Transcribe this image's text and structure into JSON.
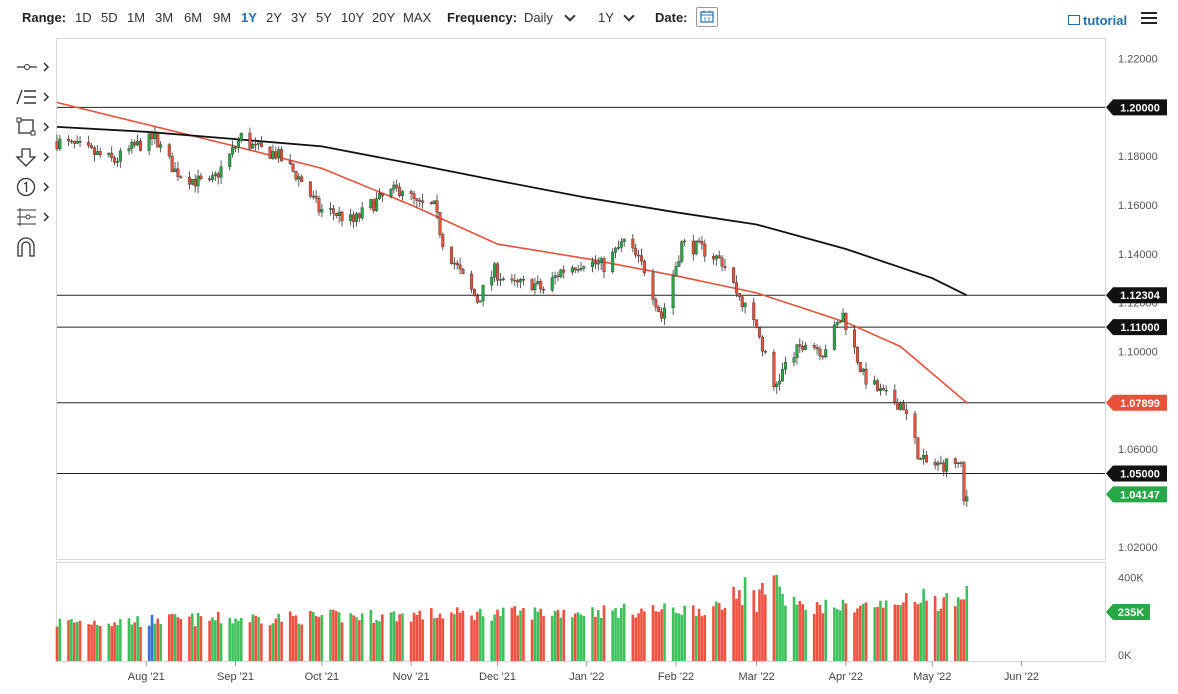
{
  "toolbar": {
    "range_label": "Range:",
    "ranges": [
      "1D",
      "5D",
      "1M",
      "3M",
      "6M",
      "9M",
      "1Y",
      "2Y",
      "3Y",
      "5Y",
      "10Y",
      "20Y",
      "MAX"
    ],
    "active_range": "1Y",
    "frequency_label": "Frequency:",
    "frequency_value": "Daily",
    "period_value": "1Y",
    "date_label": "Date:",
    "tutorial_label": "tutorial",
    "accent_color": "#1f6fb5"
  },
  "drawing_tools": [
    "line-tool-icon",
    "text-tool-icon",
    "shape-tool-icon",
    "arrow-tool-icon",
    "number-tool-icon",
    "fib-tool-icon",
    "magnet-icon"
  ],
  "chart_data": {
    "type": "candlestick",
    "instrument_hint": "EUR/USD",
    "frequency": "Daily",
    "y_axis": {
      "range": [
        1.015,
        1.228
      ],
      "ticks": [
        "1.22000",
        "1.20000",
        "1.18000",
        "1.16000",
        "1.14000",
        "1.12000",
        "1.10000",
        "1.08000",
        "1.06000",
        "1.04000",
        "1.02000"
      ]
    },
    "x_axis": {
      "range": [
        "2021-07-01",
        "2022-06-30"
      ],
      "ticks": [
        {
          "label": "Aug '21",
          "date": "2021-08-01"
        },
        {
          "label": "Sep '21",
          "date": "2021-09-01"
        },
        {
          "label": "Oct '21",
          "date": "2021-10-01"
        },
        {
          "label": "Nov '21",
          "date": "2021-11-01"
        },
        {
          "label": "Dec '21",
          "date": "2021-12-01"
        },
        {
          "label": "Jan '22",
          "date": "2022-01-01"
        },
        {
          "label": "Feb '22",
          "date": "2022-02-01"
        },
        {
          "label": "Mar '22",
          "date": "2022-03-01"
        },
        {
          "label": "Apr '22",
          "date": "2022-04-01"
        },
        {
          "label": "May '22",
          "date": "2022-05-01"
        },
        {
          "label": "Jun '22",
          "date": "2022-06-01"
        }
      ]
    },
    "price_path": [
      [
        "2021-07-01",
        1.186
      ],
      [
        "2021-07-07",
        1.184
      ],
      [
        "2021-07-14",
        1.181
      ],
      [
        "2021-07-21",
        1.178
      ],
      [
        "2021-07-28",
        1.184
      ],
      [
        "2021-08-04",
        1.187
      ],
      [
        "2021-08-11",
        1.174
      ],
      [
        "2021-08-18",
        1.17
      ],
      [
        "2021-08-23",
        1.168
      ],
      [
        "2021-08-30",
        1.18
      ],
      [
        "2021-09-03",
        1.188
      ],
      [
        "2021-09-08",
        1.183
      ],
      [
        "2021-09-15",
        1.181
      ],
      [
        "2021-09-20",
        1.175
      ],
      [
        "2021-09-24",
        1.17
      ],
      [
        "2021-09-30",
        1.158
      ],
      [
        "2021-10-05",
        1.157
      ],
      [
        "2021-10-12",
        1.153
      ],
      [
        "2021-10-18",
        1.16
      ],
      [
        "2021-10-25",
        1.165
      ],
      [
        "2021-10-29",
        1.167
      ],
      [
        "2021-11-03",
        1.16
      ],
      [
        "2021-11-09",
        1.159
      ],
      [
        "2021-11-12",
        1.145
      ],
      [
        "2021-11-19",
        1.13
      ],
      [
        "2021-11-24",
        1.121
      ],
      [
        "2021-11-30",
        1.133
      ],
      [
        "2021-12-06",
        1.127
      ],
      [
        "2021-12-13",
        1.128
      ],
      [
        "2021-12-17",
        1.125
      ],
      [
        "2021-12-23",
        1.133
      ],
      [
        "2021-12-31",
        1.137
      ],
      [
        "2022-01-07",
        1.135
      ],
      [
        "2022-01-14",
        1.145
      ],
      [
        "2022-01-21",
        1.134
      ],
      [
        "2022-01-27",
        1.114
      ],
      [
        "2022-02-03",
        1.144
      ],
      [
        "2022-02-10",
        1.142
      ],
      [
        "2022-02-17",
        1.137
      ],
      [
        "2022-02-24",
        1.12
      ],
      [
        "2022-03-01",
        1.11
      ],
      [
        "2022-03-07",
        1.085
      ],
      [
        "2022-03-11",
        1.094
      ],
      [
        "2022-03-18",
        1.105
      ],
      [
        "2022-03-24",
        1.1
      ],
      [
        "2022-03-31",
        1.115
      ],
      [
        "2022-04-07",
        1.09
      ],
      [
        "2022-04-14",
        1.082
      ],
      [
        "2022-04-21",
        1.078
      ],
      [
        "2022-04-27",
        1.055
      ],
      [
        "2022-05-03",
        1.053
      ],
      [
        "2022-05-09",
        1.055
      ],
      [
        "2022-05-11",
        1.052
      ],
      [
        "2022-05-12",
        1.038
      ],
      [
        "2022-05-13",
        1.041
      ]
    ],
    "moving_averages": [
      {
        "color": "#e8503a",
        "points": [
          [
            "2021-07-01",
            1.202
          ],
          [
            "2021-08-01",
            1.193
          ],
          [
            "2021-09-01",
            1.184
          ],
          [
            "2021-10-01",
            1.175
          ],
          [
            "2021-11-01",
            1.16
          ],
          [
            "2021-12-01",
            1.144
          ],
          [
            "2022-01-01",
            1.138
          ],
          [
            "2022-02-01",
            1.131
          ],
          [
            "2022-03-01",
            1.124
          ],
          [
            "2022-04-01",
            1.112
          ],
          [
            "2022-04-20",
            1.102
          ],
          [
            "2022-05-13",
            1.079
          ]
        ]
      },
      {
        "color": "#111111",
        "points": [
          [
            "2021-07-01",
            1.192
          ],
          [
            "2021-08-01",
            1.19
          ],
          [
            "2021-09-01",
            1.187
          ],
          [
            "2021-10-01",
            1.184
          ],
          [
            "2021-11-01",
            1.177
          ],
          [
            "2021-12-01",
            1.17
          ],
          [
            "2022-01-01",
            1.163
          ],
          [
            "2022-02-01",
            1.157
          ],
          [
            "2022-03-01",
            1.152
          ],
          [
            "2022-04-01",
            1.142
          ],
          [
            "2022-05-01",
            1.13
          ],
          [
            "2022-05-13",
            1.123
          ]
        ]
      }
    ],
    "horizontal_lines": [
      1.2,
      1.12304,
      1.11,
      1.07899,
      1.05
    ],
    "price_labels": [
      {
        "text": "1.20000",
        "value": 1.2,
        "bg": "#111111"
      },
      {
        "text": "1.12304",
        "value": 1.12304,
        "bg": "#111111"
      },
      {
        "text": "1.11000",
        "value": 1.11,
        "bg": "#111111"
      },
      {
        "text": "1.07899",
        "value": 1.07899,
        "bg": "#e8503a"
      },
      {
        "text": "1.05000",
        "value": 1.05,
        "bg": "#111111"
      },
      {
        "text": "1.04147",
        "value": 1.04147,
        "bg": "#27a846"
      }
    ],
    "colors": {
      "up": "#27a846",
      "down": "#e8503a",
      "volume_up": "#3cc15a",
      "volume_down": "#f0503f",
      "highlight": "#3b6fd6"
    },
    "volume": {
      "range": [
        0,
        470000
      ],
      "ticks": [
        {
          "label": "400K",
          "value": 400000
        },
        {
          "label": "0K",
          "value": 0
        }
      ],
      "last_label": "235K",
      "last_value": 235000
    }
  }
}
